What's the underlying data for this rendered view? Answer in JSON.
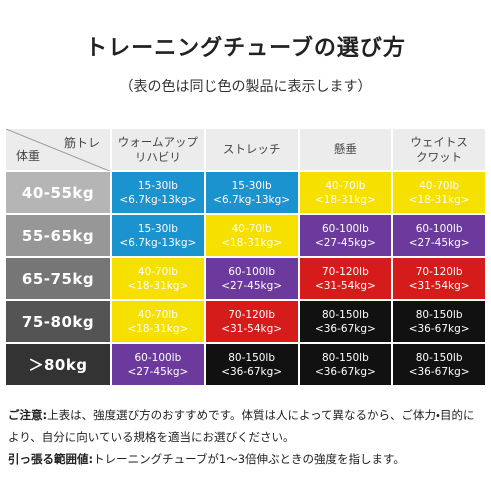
{
  "header": {
    "title": "トレーニングチューブの選び方",
    "subtitle": "（表の色は同じ色の製品に表示します）"
  },
  "table": {
    "corner": {
      "top": "筋トレ",
      "bottom": "体重"
    },
    "columns": [
      [
        "ウォームアップ",
        "リハビリ"
      ],
      [
        "ストレッチ"
      ],
      [
        "懸垂"
      ],
      [
        "ウェイトス",
        "クワット"
      ]
    ],
    "rows": [
      {
        "label": "40-55kg",
        "color": "#b5b5b5",
        "cells": [
          {
            "lines": [
              "15-30lb",
              "<6.7kg-13kg>"
            ],
            "color": "#1b93cf"
          },
          {
            "lines": [
              "15-30lb",
              "<6.7kg-13kg>"
            ],
            "color": "#1b93cf"
          },
          {
            "lines": [
              "40-70lb",
              "<18-31kg>"
            ],
            "color": "#f6e000"
          },
          {
            "lines": [
              "40-70lb",
              "<18-31kg>"
            ],
            "color": "#f6e000"
          }
        ]
      },
      {
        "label": "55-65kg",
        "color": "#979797",
        "cells": [
          {
            "lines": [
              "15-30lb",
              "<6.7kg-13kg>"
            ],
            "color": "#1b93cf"
          },
          {
            "lines": [
              "40-70lb",
              "<18-31kg>"
            ],
            "color": "#f6e000"
          },
          {
            "lines": [
              "60-100lb",
              "<27-45kg>"
            ],
            "color": "#6b3a9c"
          },
          {
            "lines": [
              "60-100lb",
              "<27-45kg>"
            ],
            "color": "#6b3a9c"
          }
        ]
      },
      {
        "label": "65-75kg",
        "color": "#767676",
        "cells": [
          {
            "lines": [
              "40-70lb",
              "<18-31kg>"
            ],
            "color": "#f6e000"
          },
          {
            "lines": [
              "60-100lb",
              "<27-45kg>"
            ],
            "color": "#6b3a9c"
          },
          {
            "lines": [
              "70-120lb",
              "<31-54kg>"
            ],
            "color": "#d61b1b"
          },
          {
            "lines": [
              "70-120lb",
              "<31-54kg>"
            ],
            "color": "#d61b1b"
          }
        ]
      },
      {
        "label": "75-80kg",
        "color": "#545454",
        "cells": [
          {
            "lines": [
              "40-70lb",
              "<18-31kg>"
            ],
            "color": "#f6e000"
          },
          {
            "lines": [
              "70-120lb",
              "<31-54kg>"
            ],
            "color": "#d61b1b"
          },
          {
            "lines": [
              "80-150lb",
              "<36-67kg>"
            ],
            "color": "#111111"
          },
          {
            "lines": [
              "80-150lb",
              "<36-67kg>"
            ],
            "color": "#111111"
          }
        ]
      },
      {
        "label": "＞80kg",
        "color": "#333333",
        "cells": [
          {
            "lines": [
              "60-100lb",
              "<27-45kg>"
            ],
            "color": "#6b3a9c"
          },
          {
            "lines": [
              "80-150lb",
              "<36-67kg>"
            ],
            "color": "#111111"
          },
          {
            "lines": [
              "80-150lb",
              "<36-67kg>"
            ],
            "color": "#111111"
          },
          {
            "lines": [
              "80-150lb",
              "<36-67kg>"
            ],
            "color": "#111111"
          }
        ]
      }
    ]
  },
  "notes": [
    {
      "label": "ご注意:",
      "text": "上表は、強度選び方のおすすめです。体質は人によって異なるから、ご体力・目的により、自分に向いている規格を適当にお選びください。"
    },
    {
      "label": "引っ張る範囲値:",
      "text": "トレーニングチューブが1〜3倍伸ぶときの強度を指します。"
    }
  ]
}
